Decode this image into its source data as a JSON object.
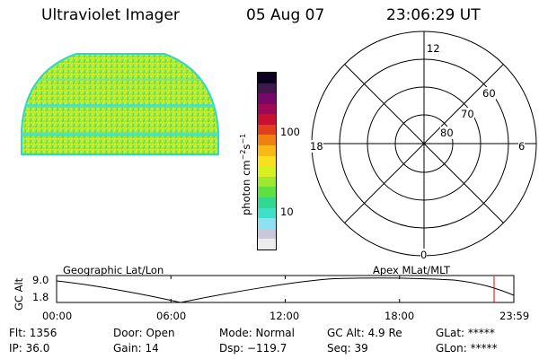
{
  "header": {
    "instrument": "Ultraviolet Imager",
    "date": "05 Aug 07",
    "time": "23:06:29 UT"
  },
  "colorbar": {
    "unit_prefix": "photon cm",
    "exp1": "−2",
    "mid": "s",
    "exp2": "−1",
    "tick_100": "100",
    "tick_10": "10",
    "colors": [
      "#ececec",
      "#c8c8d8",
      "#8fe0f0",
      "#40e0c8",
      "#30d890",
      "#60e040",
      "#a0e830",
      "#d8f020",
      "#f8e020",
      "#f8b818",
      "#f08010",
      "#e04020",
      "#c81030",
      "#a00858",
      "#780868",
      "#401850",
      "#100020"
    ]
  },
  "polar": {
    "label_12": "12",
    "label_6": "6",
    "label_18": "18",
    "label_0": "0",
    "label_60": "60",
    "label_70": "70",
    "label_80": "80"
  },
  "orbit": {
    "left_label": "Geographic Lat/Lon",
    "right_label": "Apex  MLat/MLT",
    "y_axis_label": "GC Alt",
    "y_high": "9.0",
    "y_low": "1.8",
    "x_ticks": [
      "00:00",
      "06:00",
      "12:00",
      "18:00",
      "23:59"
    ],
    "marker_color": "#e00000"
  },
  "info": {
    "flt": "Flt: 1356",
    "ip": "IP: 36.0",
    "door": "Door: Open",
    "gain": "Gain: 14",
    "mode": "Mode: Normal",
    "dsp": "Dsp: −119.7",
    "gcalt": "GC Alt: 4.9 Re",
    "seq": "Seq: 39",
    "glat": "GLat: *****",
    "glon": "GLon: *****"
  }
}
